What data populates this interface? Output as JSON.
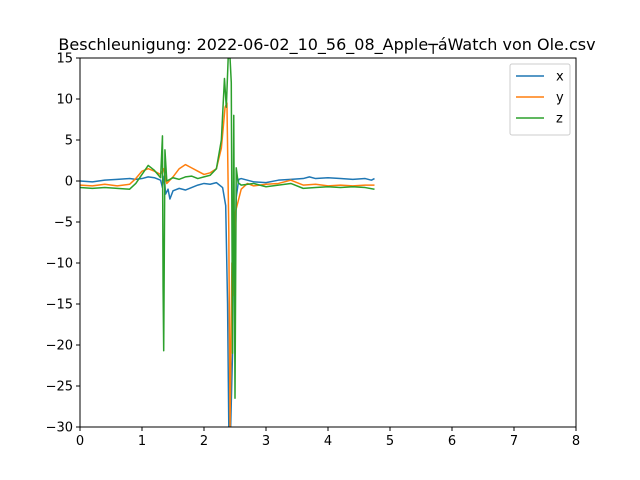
{
  "chart_data": {
    "type": "line",
    "title": "Beschleunigung: 2022-06-02_10_56_08_Apple┬áWatch von Ole.csv",
    "xlabel": "",
    "ylabel": "",
    "xlim": [
      0,
      8
    ],
    "ylim": [
      -30,
      15
    ],
    "xticks": [
      0,
      1,
      2,
      3,
      4,
      5,
      6,
      7,
      8
    ],
    "yticks": [
      -30,
      -25,
      -20,
      -15,
      -10,
      -5,
      0,
      5,
      10,
      15
    ],
    "grid": false,
    "legend_position": "top-right",
    "series": [
      {
        "name": "x",
        "color": "#1f77b4",
        "points": [
          [
            0.0,
            0.0
          ],
          [
            0.2,
            -0.1
          ],
          [
            0.4,
            0.1
          ],
          [
            0.6,
            0.2
          ],
          [
            0.8,
            0.3
          ],
          [
            0.9,
            0.2
          ],
          [
            1.0,
            0.3
          ],
          [
            1.1,
            0.5
          ],
          [
            1.2,
            0.4
          ],
          [
            1.3,
            0.1
          ],
          [
            1.33,
            -0.8
          ],
          [
            1.36,
            0.6
          ],
          [
            1.38,
            -1.6
          ],
          [
            1.42,
            -1.0
          ],
          [
            1.45,
            -2.2
          ],
          [
            1.5,
            -1.2
          ],
          [
            1.6,
            -0.9
          ],
          [
            1.7,
            -1.1
          ],
          [
            1.8,
            -0.8
          ],
          [
            1.9,
            -0.5
          ],
          [
            2.0,
            -0.3
          ],
          [
            2.1,
            -0.4
          ],
          [
            2.2,
            -0.2
          ],
          [
            2.3,
            -0.8
          ],
          [
            2.35,
            -3.0
          ],
          [
            2.38,
            -15.0
          ],
          [
            2.4,
            -30.0
          ],
          [
            2.43,
            -30.0
          ],
          [
            2.46,
            -21.0
          ],
          [
            2.48,
            -3.0
          ],
          [
            2.5,
            -10.0
          ],
          [
            2.52,
            -2.0
          ],
          [
            2.56,
            0.2
          ],
          [
            2.6,
            0.3
          ],
          [
            2.8,
            -0.1
          ],
          [
            3.0,
            -0.2
          ],
          [
            3.2,
            0.1
          ],
          [
            3.4,
            0.2
          ],
          [
            3.6,
            0.3
          ],
          [
            3.7,
            0.5
          ],
          [
            3.8,
            0.3
          ],
          [
            4.0,
            0.4
          ],
          [
            4.2,
            0.3
          ],
          [
            4.4,
            0.2
          ],
          [
            4.6,
            0.3
          ],
          [
            4.7,
            0.1
          ],
          [
            4.75,
            0.3
          ]
        ]
      },
      {
        "name": "y",
        "color": "#ff7f0e",
        "points": [
          [
            0.0,
            -0.5
          ],
          [
            0.2,
            -0.6
          ],
          [
            0.4,
            -0.4
          ],
          [
            0.6,
            -0.6
          ],
          [
            0.8,
            -0.4
          ],
          [
            0.9,
            0.3
          ],
          [
            1.0,
            1.2
          ],
          [
            1.1,
            1.5
          ],
          [
            1.2,
            1.2
          ],
          [
            1.3,
            0.8
          ],
          [
            1.35,
            1.5
          ],
          [
            1.4,
            -0.3
          ],
          [
            1.5,
            0.5
          ],
          [
            1.6,
            1.5
          ],
          [
            1.7,
            2.0
          ],
          [
            1.8,
            1.6
          ],
          [
            1.9,
            1.2
          ],
          [
            2.0,
            0.8
          ],
          [
            2.1,
            1.0
          ],
          [
            2.2,
            1.5
          ],
          [
            2.28,
            4.0
          ],
          [
            2.34,
            9.0
          ],
          [
            2.37,
            9.5
          ],
          [
            2.4,
            -6.0
          ],
          [
            2.42,
            -30.0
          ],
          [
            2.45,
            -10.0
          ],
          [
            2.47,
            -14.0
          ],
          [
            2.5,
            -4.0
          ],
          [
            2.55,
            -2.5
          ],
          [
            2.6,
            -1.0
          ],
          [
            2.7,
            -0.3
          ],
          [
            2.8,
            -0.6
          ],
          [
            3.0,
            -0.4
          ],
          [
            3.2,
            -0.3
          ],
          [
            3.4,
            0.1
          ],
          [
            3.6,
            -0.5
          ],
          [
            3.8,
            -0.4
          ],
          [
            4.0,
            -0.6
          ],
          [
            4.2,
            -0.5
          ],
          [
            4.4,
            -0.6
          ],
          [
            4.6,
            -0.5
          ],
          [
            4.75,
            -0.5
          ]
        ]
      },
      {
        "name": "z",
        "color": "#2ca02c",
        "points": [
          [
            0.0,
            -0.8
          ],
          [
            0.2,
            -0.9
          ],
          [
            0.4,
            -0.8
          ],
          [
            0.6,
            -0.9
          ],
          [
            0.8,
            -1.0
          ],
          [
            0.9,
            -0.3
          ],
          [
            1.0,
            0.8
          ],
          [
            1.1,
            1.9
          ],
          [
            1.2,
            1.3
          ],
          [
            1.3,
            0.4
          ],
          [
            1.33,
            5.5
          ],
          [
            1.34,
            -13.0
          ],
          [
            1.35,
            -20.7
          ],
          [
            1.37,
            3.8
          ],
          [
            1.4,
            0.0
          ],
          [
            1.5,
            0.4
          ],
          [
            1.6,
            0.2
          ],
          [
            1.7,
            0.5
          ],
          [
            1.8,
            0.6
          ],
          [
            1.9,
            0.3
          ],
          [
            2.0,
            0.5
          ],
          [
            2.1,
            0.7
          ],
          [
            2.2,
            1.5
          ],
          [
            2.28,
            5.0
          ],
          [
            2.33,
            12.5
          ],
          [
            2.36,
            9.0
          ],
          [
            2.39,
            15.0
          ],
          [
            2.42,
            15.0
          ],
          [
            2.44,
            12.0
          ],
          [
            2.46,
            -21.0
          ],
          [
            2.48,
            8.0
          ],
          [
            2.5,
            -26.5
          ],
          [
            2.52,
            1.6
          ],
          [
            2.55,
            -0.2
          ],
          [
            2.6,
            -0.5
          ],
          [
            2.8,
            -0.3
          ],
          [
            3.0,
            -0.7
          ],
          [
            3.2,
            -0.5
          ],
          [
            3.4,
            -0.3
          ],
          [
            3.6,
            -0.9
          ],
          [
            3.8,
            -0.8
          ],
          [
            4.0,
            -0.7
          ],
          [
            4.2,
            -0.8
          ],
          [
            4.4,
            -0.7
          ],
          [
            4.6,
            -0.8
          ],
          [
            4.75,
            -1.0
          ]
        ]
      }
    ]
  }
}
